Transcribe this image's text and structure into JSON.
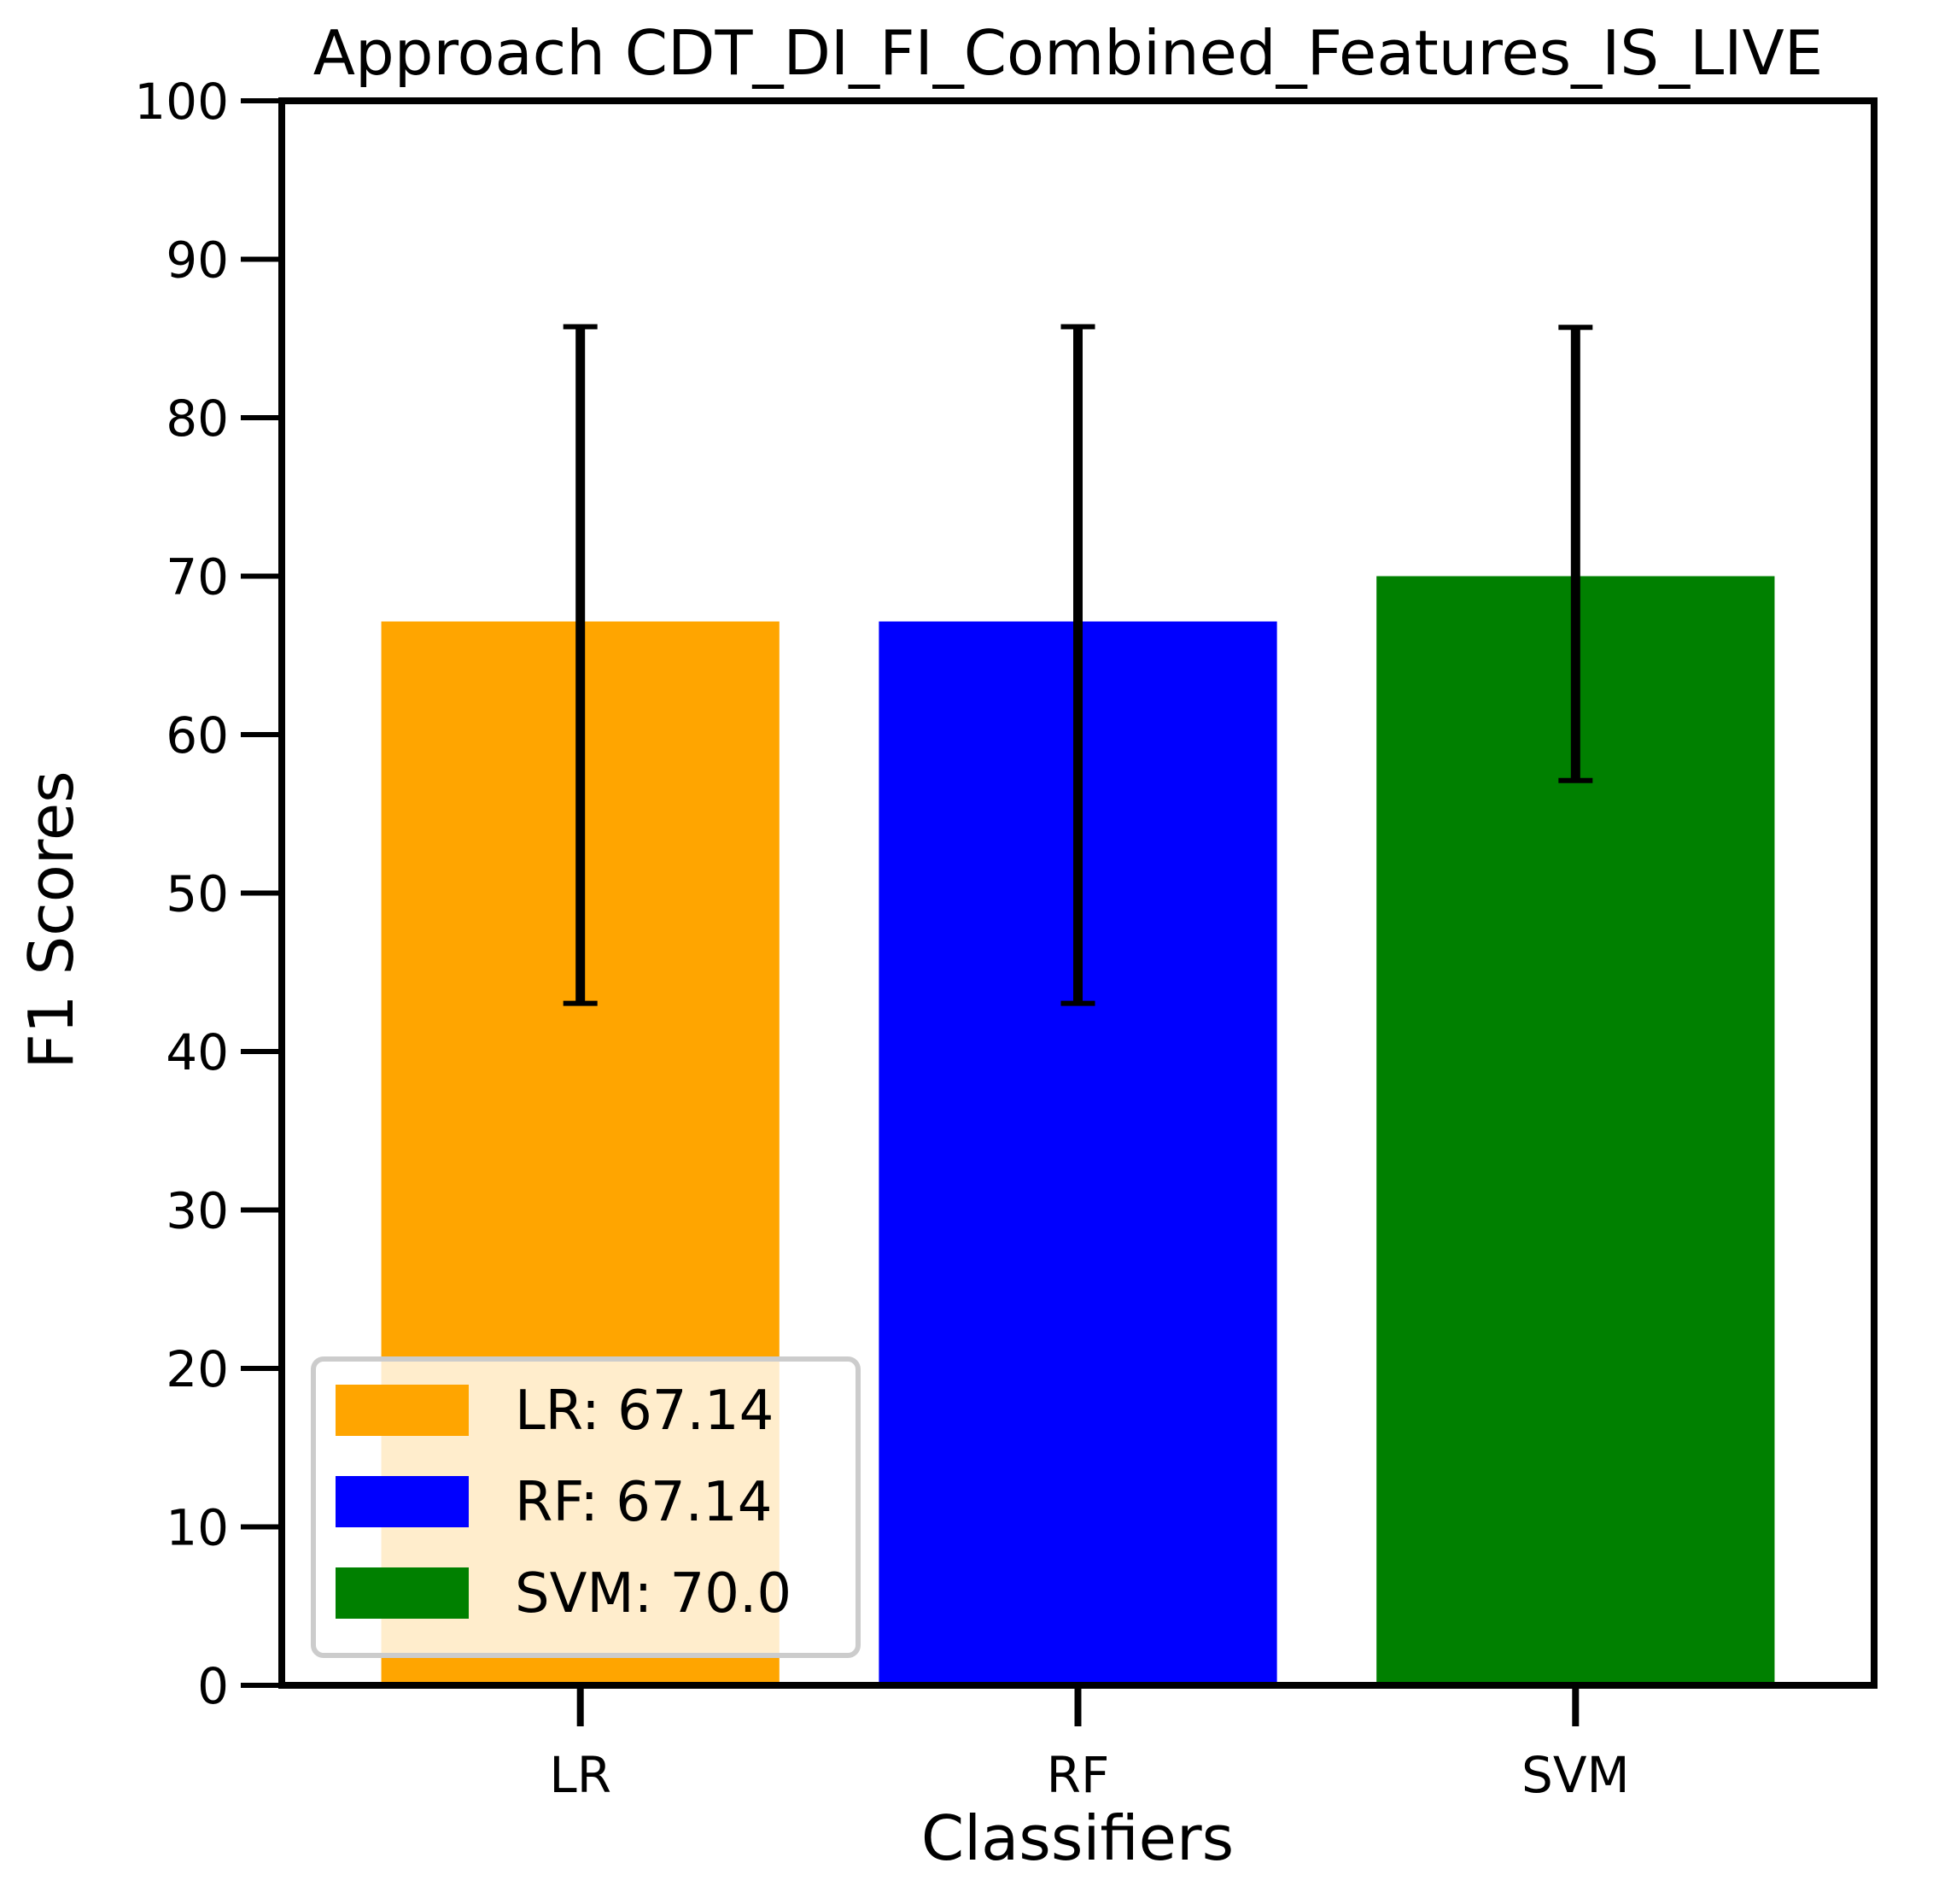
{
  "chart_data": {
    "type": "bar",
    "title": "Approach CDT_DI_FI_Combined_Features_IS_LIVE",
    "xlabel": "Classifiers",
    "ylabel": "F1 Scores",
    "categories": [
      "LR",
      "RF",
      "SVM"
    ],
    "values": [
      67.14,
      67.14,
      70.0
    ],
    "errors_lower": [
      24.1,
      24.1,
      12.9
    ],
    "errors_upper": [
      18.6,
      18.6,
      15.7
    ],
    "colors": [
      "#ffa500",
      "#0000ff",
      "#008000"
    ],
    "ylim": [
      0,
      100
    ],
    "yticks": [
      0,
      10,
      20,
      30,
      40,
      50,
      60,
      70,
      80,
      90,
      100
    ],
    "grid": false,
    "legend": {
      "placement": "bottom-left",
      "entries": [
        "LR: 67.14",
        "RF: 67.14",
        "SVM: 70.0"
      ]
    }
  }
}
